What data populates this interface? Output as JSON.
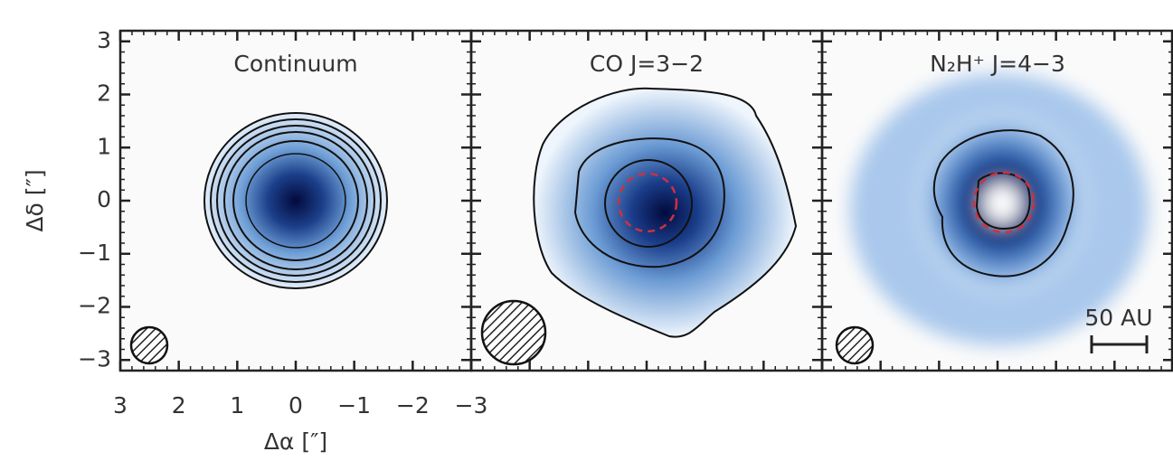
{
  "chart_data": [
    {
      "type": "image",
      "title": "Continuum",
      "xlabel": "Δα [″]",
      "ylabel": "Δδ [″]",
      "xlim": [
        3,
        -3
      ],
      "ylim": [
        -3.2,
        3.2
      ],
      "xticks": [
        3,
        2,
        1,
        0,
        {
          "value": -1,
          "label": "−1"
        },
        {
          "value": -2,
          "label": "−2"
        },
        {
          "value": -3,
          "label": "−3"
        }
      ],
      "yticks": [
        {
          "value": -3,
          "label": "−3"
        },
        {
          "value": -2,
          "label": "−2"
        },
        {
          "value": -1,
          "label": "−1"
        },
        0,
        1,
        2,
        3
      ]
    },
    {
      "type": "image",
      "title": "CO J=3−2",
      "xlim": [
        3,
        -3
      ],
      "ylim": [
        -3.2,
        3.2
      ]
    },
    {
      "type": "image",
      "title": "N₂H⁺ J=4−3",
      "annotation": "50 AU",
      "xlim": [
        3,
        -3
      ],
      "ylim": [
        -3.2,
        3.2
      ]
    }
  ]
}
